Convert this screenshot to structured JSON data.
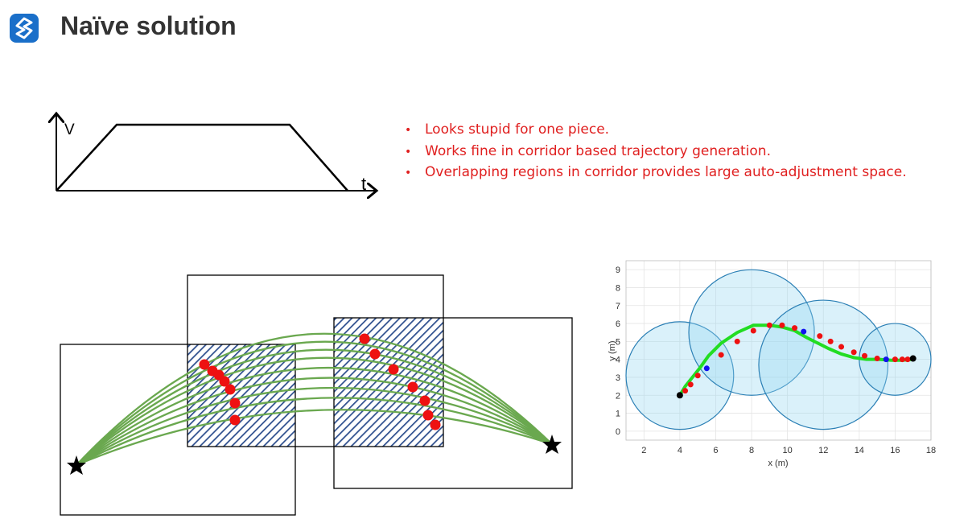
{
  "page": {
    "title": "Naïve solution"
  },
  "logo": {
    "icon": "s-logo-icon",
    "color": "#1a6fc9"
  },
  "bullets": [
    "Looks stupid for one piece.",
    "Works fine in corridor based trajectory generation.",
    "Overlapping regions in corridor provides large auto-adjustment space."
  ],
  "velocity_profile": {
    "y_label": "V",
    "x_label": "t"
  },
  "chart_data": {
    "type": "scatter",
    "xlabel": "x (m)",
    "ylabel": "y (m)",
    "xlim": [
      1,
      18
    ],
    "ylim": [
      -0.5,
      9.5
    ],
    "xticks": [
      2,
      4,
      6,
      8,
      10,
      12,
      14,
      16,
      18
    ],
    "yticks": [
      0,
      1,
      2,
      3,
      4,
      5,
      6,
      7,
      8,
      9
    ],
    "grid": true,
    "circles": [
      {
        "cx": 4.0,
        "cy": 3.1,
        "r": 3.0
      },
      {
        "cx": 8.0,
        "cy": 5.5,
        "r": 3.5
      },
      {
        "cx": 12.0,
        "cy": 3.7,
        "r": 3.6
      },
      {
        "cx": 16.0,
        "cy": 4.0,
        "r": 2.0
      }
    ],
    "trajectory": {
      "x": [
        4.0,
        4.3,
        4.7,
        5.1,
        5.6,
        6.3,
        7.2,
        8.1,
        9.0,
        9.7,
        10.4,
        11.1,
        11.7,
        12.3,
        13.0,
        13.7,
        14.4,
        15.1,
        15.8,
        16.4,
        17.0
      ],
      "y": [
        2.0,
        2.5,
        3.0,
        3.5,
        4.2,
        4.9,
        5.5,
        5.9,
        5.9,
        5.8,
        5.6,
        5.2,
        4.9,
        4.6,
        4.3,
        4.1,
        4.0,
        4.0,
        3.95,
        3.95,
        4.0
      ]
    },
    "red_points": {
      "x": [
        4.3,
        4.6,
        5.0,
        6.3,
        7.2,
        8.1,
        9.0,
        9.7,
        10.4,
        11.8,
        12.4,
        13.0,
        13.7,
        14.3,
        15.0,
        16.0,
        16.4,
        16.7
      ],
      "y": [
        2.25,
        2.6,
        3.1,
        4.25,
        5.0,
        5.6,
        5.9,
        5.9,
        5.75,
        5.3,
        5.0,
        4.7,
        4.4,
        4.2,
        4.05,
        4.0,
        4.0,
        4.0
      ]
    },
    "blue_points": {
      "x": [
        5.5,
        10.9,
        15.5
      ],
      "y": [
        3.5,
        5.55,
        4.0
      ]
    },
    "black_points": {
      "x": [
        4.0,
        17.0
      ],
      "y": [
        2.0,
        4.05
      ]
    }
  }
}
